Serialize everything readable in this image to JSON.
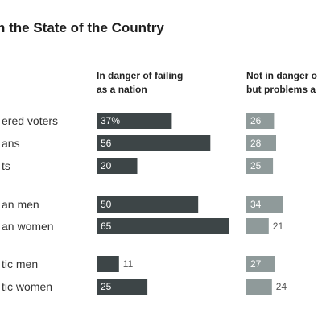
{
  "chart_data": {
    "type": "bar",
    "title": "n the State of the Country",
    "columns": [
      {
        "name": "danger",
        "header_lines": [
          "In danger of failing",
          "as a nation"
        ],
        "color": "#3d4547"
      },
      {
        "name": "problems",
        "header_lines": [
          "Not in danger o",
          "but problems a"
        ],
        "color": "#8f9a9a"
      }
    ],
    "rows": [
      {
        "label": "ered voters",
        "values": [
          "37%",
          "26"
        ]
      },
      {
        "label": "ans",
        "values": [
          "56",
          "28"
        ]
      },
      {
        "label": "ts",
        "values": [
          "20",
          "25"
        ]
      },
      {
        "label": "an men",
        "values": [
          "50",
          "34"
        ]
      },
      {
        "label": "an women",
        "values": [
          "65",
          "21"
        ]
      },
      {
        "label": "tic men",
        "values": [
          "11",
          "27"
        ]
      },
      {
        "label": "tic women",
        "values": [
          "25",
          "24"
        ]
      }
    ],
    "xlim": [
      0,
      65
    ]
  }
}
